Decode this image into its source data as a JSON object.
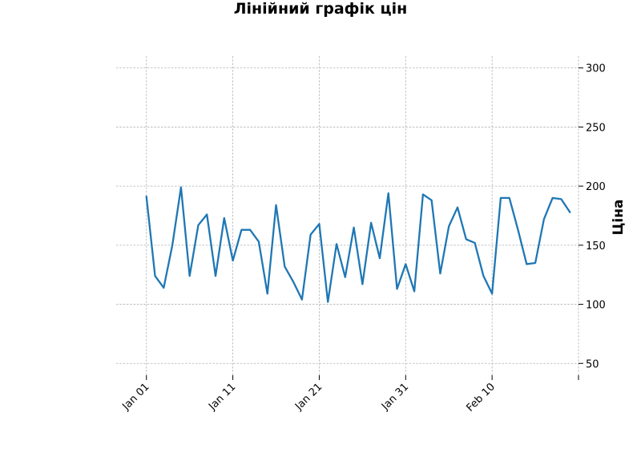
{
  "chart_data": {
    "type": "line",
    "title": "Лінійний графік цін",
    "xlabel": "",
    "ylabel": "Ціна",
    "y_axis_side": "right",
    "ylim": [
      40,
      310
    ],
    "xlim_days": [
      -3.5,
      50.0
    ],
    "grid": true,
    "x_ticks": [
      "Jan 01",
      "Jan 11",
      "Jan 21",
      "Jan 31",
      "Feb 10",
      ""
    ],
    "y_ticks": [
      "300",
      "250",
      "200",
      "150",
      "100",
      "50"
    ],
    "color": "#1f77b4",
    "x": [
      "2024-01-01",
      "2024-01-02",
      "2024-01-03",
      "2024-01-04",
      "2024-01-05",
      "2024-01-06",
      "2024-01-07",
      "2024-01-08",
      "2024-01-09",
      "2024-01-10",
      "2024-01-11",
      "2024-01-12",
      "2024-01-13",
      "2024-01-14",
      "2024-01-15",
      "2024-01-16",
      "2024-01-17",
      "2024-01-18",
      "2024-01-19",
      "2024-01-20",
      "2024-01-21",
      "2024-01-22",
      "2024-01-23",
      "2024-01-24",
      "2024-01-25",
      "2024-01-26",
      "2024-01-27",
      "2024-01-28",
      "2024-01-29",
      "2024-01-30",
      "2024-01-31",
      "2024-02-01",
      "2024-02-02",
      "2024-02-03",
      "2024-02-04",
      "2024-02-05",
      "2024-02-06",
      "2024-02-07",
      "2024-02-08",
      "2024-02-09",
      "2024-02-10",
      "2024-02-11",
      "2024-02-12",
      "2024-02-13",
      "2024-02-14",
      "2024-02-15",
      "2024-02-16",
      "2024-02-17",
      "2024-02-18",
      "2024-02-19"
    ],
    "series": [
      {
        "values": [
          191,
          124,
          114,
          150,
          199,
          124,
          167,
          176,
          124,
          173,
          137,
          163,
          163,
          153,
          109,
          184,
          132,
          119,
          104,
          159,
          168,
          102,
          151,
          123,
          165,
          117,
          169,
          139,
          194,
          113,
          134,
          111,
          193,
          188,
          126,
          166,
          182,
          155,
          152,
          124,
          109,
          190,
          190,
          163,
          134,
          135,
          172,
          190,
          189,
          178
        ]
      }
    ]
  }
}
